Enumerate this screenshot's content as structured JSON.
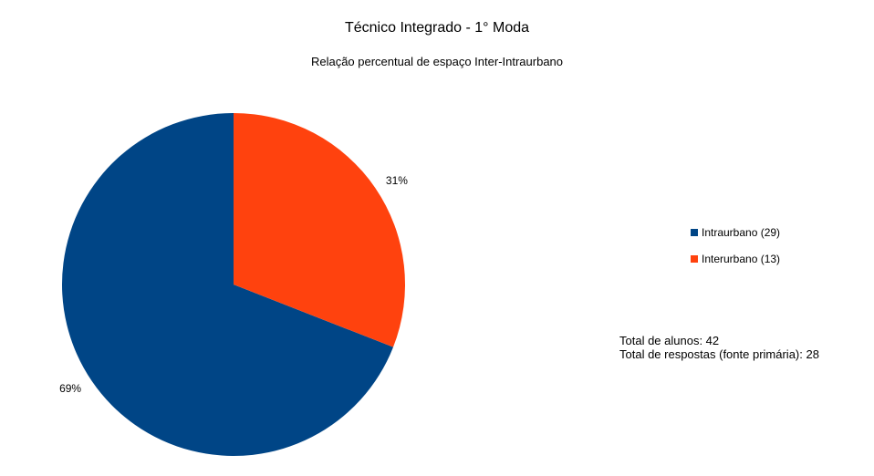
{
  "chart_data": {
    "type": "pie",
    "title": "Técnico Integrado - 1° Moda",
    "subtitle": "Relação percentual de espaço Inter-Intraurbano",
    "slices": [
      {
        "name": "Intraurbano (29)",
        "value": 29,
        "percent_label": "69%",
        "color": "#004586"
      },
      {
        "name": "Interurbano (13)",
        "value": 13,
        "percent_label": "31%",
        "color": "#ff420e"
      }
    ],
    "legend_placement": "right"
  },
  "notes": {
    "total_alunos": "Total de alunos: 42",
    "total_respostas": "Total de respostas (fonte primária): 28"
  }
}
